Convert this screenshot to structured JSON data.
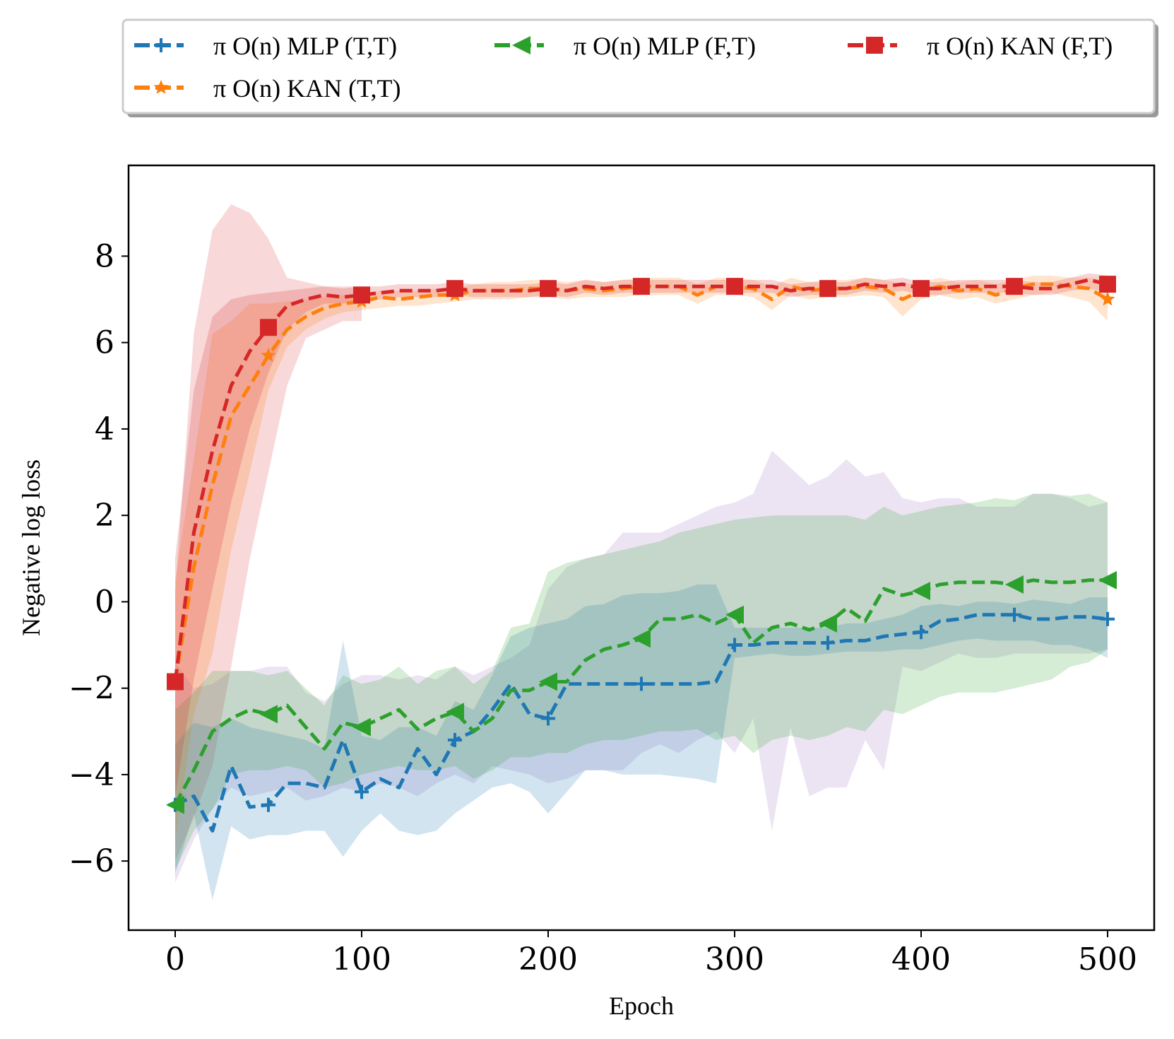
{
  "chart_data": {
    "type": "line",
    "title": "",
    "xlabel": "Epoch",
    "ylabel": "Negative log loss",
    "xlim": [
      -25,
      525
    ],
    "ylim": [
      -7.6,
      10.1
    ],
    "xticks": [
      0,
      100,
      200,
      300,
      400,
      500
    ],
    "yticks": [
      -6,
      -4,
      -2,
      0,
      2,
      4,
      6,
      8
    ],
    "xtick_labels": [
      "0",
      "100",
      "200",
      "300",
      "400",
      "500"
    ],
    "ytick_labels": [
      "−6",
      "−4",
      "−2",
      "0",
      "2",
      "4",
      "6",
      "8"
    ],
    "legend_position": "top, outside plot",
    "series": [
      {
        "name": "π O(n) MLP (T,T)",
        "color": "#1f77b4",
        "marker": "plus",
        "x": [
          0,
          10,
          20,
          30,
          40,
          50,
          60,
          70,
          80,
          90,
          100,
          110,
          120,
          130,
          140,
          150,
          160,
          170,
          180,
          190,
          200,
          210,
          220,
          230,
          240,
          250,
          260,
          270,
          280,
          290,
          300,
          310,
          320,
          330,
          340,
          350,
          360,
          370,
          380,
          390,
          400,
          410,
          420,
          430,
          440,
          450,
          460,
          470,
          480,
          490,
          500
        ],
        "y": [
          -4.7,
          -4.5,
          -5.3,
          -3.8,
          -4.75,
          -4.7,
          -4.2,
          -4.2,
          -4.3,
          -3.2,
          -4.4,
          -4.1,
          -4.3,
          -3.4,
          -4.0,
          -3.2,
          -3.0,
          -2.5,
          -1.9,
          -2.6,
          -2.7,
          -1.9,
          -1.9,
          -1.9,
          -1.9,
          -1.9,
          -1.9,
          -1.9,
          -1.9,
          -1.85,
          -1.0,
          -1.0,
          -0.95,
          -0.95,
          -0.95,
          -0.95,
          -0.9,
          -0.9,
          -0.8,
          -0.75,
          -0.7,
          -0.45,
          -0.4,
          -0.3,
          -0.3,
          -0.3,
          -0.4,
          -0.4,
          -0.35,
          -0.35,
          -0.4
        ],
        "band_lower": [
          -6.3,
          -4.9,
          -6.9,
          -5.2,
          -5.5,
          -5.4,
          -5.4,
          -5.3,
          -5.3,
          -5.9,
          -5.3,
          -4.9,
          -5.3,
          -5.4,
          -5.3,
          -4.9,
          -4.6,
          -4.3,
          -4.2,
          -4.4,
          -4.9,
          -4.4,
          -3.9,
          -3.9,
          -4.0,
          -4.0,
          -4.0,
          -4.05,
          -4.1,
          -4.2,
          -1.3,
          -1.25,
          -1.2,
          -1.25,
          -1.25,
          -1.2,
          -1.15,
          -1.15,
          -1.15,
          -1.1,
          -1.1,
          -1.0,
          -0.9,
          -0.85,
          -0.9,
          -0.9,
          -0.9,
          -1.0,
          -1.0,
          -1.1,
          -1.3
        ],
        "band_upper": [
          -3.3,
          -2.8,
          -2.9,
          -2.7,
          -2.9,
          -3.0,
          -3.1,
          -3.2,
          -3.4,
          -0.9,
          -3.1,
          -3.2,
          -2.9,
          -2.9,
          -3.1,
          -2.3,
          -2.5,
          -1.7,
          -0.8,
          -0.6,
          -0.5,
          -0.4,
          -0.1,
          -0.05,
          0.15,
          0.2,
          0.2,
          0.25,
          0.4,
          0.4,
          -0.6,
          -0.6,
          -0.6,
          -0.6,
          -0.6,
          -0.6,
          -0.5,
          -0.5,
          -0.4,
          -0.3,
          -0.1,
          -0.05,
          -0.1,
          0.0,
          0.0,
          -0.05,
          0.05,
          0.0,
          -0.05,
          0.1,
          0.1
        ]
      },
      {
        "name": "π O(n) KAN (T,T)",
        "color": "#ff7f0e",
        "marker": "star",
        "x": [
          0,
          10,
          20,
          30,
          40,
          50,
          60,
          70,
          80,
          90,
          100,
          110,
          120,
          130,
          140,
          150,
          160,
          170,
          180,
          190,
          200,
          210,
          220,
          230,
          240,
          250,
          260,
          270,
          280,
          290,
          300,
          310,
          320,
          330,
          340,
          350,
          360,
          370,
          380,
          390,
          400,
          410,
          420,
          430,
          440,
          450,
          460,
          470,
          480,
          490,
          500
        ],
        "y": [
          -1.85,
          0.8,
          2.7,
          4.3,
          5.0,
          5.7,
          6.3,
          6.6,
          6.8,
          6.9,
          6.95,
          7.05,
          7.0,
          7.05,
          7.1,
          7.1,
          7.2,
          7.2,
          7.2,
          7.25,
          7.25,
          7.2,
          7.25,
          7.2,
          7.25,
          7.3,
          7.3,
          7.3,
          7.1,
          7.3,
          7.3,
          7.25,
          7.0,
          7.3,
          7.2,
          7.25,
          7.25,
          7.3,
          7.25,
          7.0,
          7.2,
          7.3,
          7.2,
          7.25,
          7.1,
          7.25,
          7.35,
          7.35,
          7.3,
          7.25,
          7.0
        ],
        "band_lower": [
          -5.5,
          -2.6,
          -1.2,
          1.2,
          3.0,
          4.9,
          5.9,
          6.3,
          6.55,
          6.7,
          6.75,
          6.8,
          6.85,
          6.85,
          6.9,
          6.95,
          7.0,
          7.0,
          7.0,
          7.05,
          7.05,
          7.0,
          7.05,
          7.05,
          7.05,
          7.1,
          7.1,
          7.1,
          6.9,
          7.1,
          7.1,
          7.05,
          6.75,
          7.1,
          7.0,
          7.05,
          7.05,
          7.1,
          7.05,
          6.6,
          7.0,
          7.1,
          7.0,
          7.05,
          6.9,
          7.0,
          7.1,
          7.15,
          7.05,
          6.95,
          6.5
        ],
        "band_upper": [
          0.5,
          3.3,
          6.2,
          6.5,
          6.9,
          6.9,
          6.95,
          7.0,
          7.05,
          7.1,
          7.15,
          7.2,
          7.2,
          7.2,
          7.25,
          7.25,
          7.35,
          7.4,
          7.4,
          7.45,
          7.45,
          7.4,
          7.45,
          7.4,
          7.45,
          7.5,
          7.5,
          7.5,
          7.35,
          7.5,
          7.5,
          7.45,
          7.3,
          7.5,
          7.4,
          7.45,
          7.45,
          7.5,
          7.45,
          7.35,
          7.4,
          7.5,
          7.4,
          7.45,
          7.35,
          7.45,
          7.55,
          7.55,
          7.5,
          7.5,
          7.45
        ]
      },
      {
        "name": "π O(n) MLP (F,T)",
        "color": "#2ca02c",
        "marker": "triangle-left",
        "x": [
          0,
          10,
          20,
          30,
          40,
          50,
          60,
          70,
          80,
          90,
          100,
          110,
          120,
          130,
          140,
          150,
          160,
          170,
          180,
          190,
          200,
          210,
          220,
          230,
          240,
          250,
          260,
          270,
          280,
          290,
          300,
          310,
          320,
          330,
          340,
          350,
          360,
          370,
          380,
          390,
          400,
          410,
          420,
          430,
          440,
          450,
          460,
          470,
          480,
          490,
          500
        ],
        "y": [
          -4.7,
          -3.9,
          -3.0,
          -2.7,
          -2.5,
          -2.6,
          -2.4,
          -2.9,
          -3.4,
          -2.8,
          -2.9,
          -2.7,
          -2.5,
          -2.95,
          -2.7,
          -2.55,
          -3.0,
          -2.7,
          -2.05,
          -2.05,
          -1.85,
          -1.85,
          -1.35,
          -1.1,
          -1.0,
          -0.85,
          -0.4,
          -0.4,
          -0.3,
          -0.5,
          -0.3,
          -0.95,
          -0.6,
          -0.5,
          -0.65,
          -0.5,
          -0.15,
          -0.45,
          0.3,
          0.15,
          0.25,
          0.4,
          0.45,
          0.45,
          0.45,
          0.4,
          0.5,
          0.45,
          0.45,
          0.5,
          0.5
        ],
        "band_lower": [
          -6.2,
          -5.3,
          -4.8,
          -4.0,
          -3.9,
          -3.9,
          -3.8,
          -3.9,
          -4.3,
          -4.2,
          -4.0,
          -3.9,
          -3.8,
          -3.9,
          -3.9,
          -3.8,
          -4.1,
          -3.9,
          -3.6,
          -3.6,
          -3.5,
          -3.5,
          -3.3,
          -3.2,
          -3.2,
          -3.1,
          -3.0,
          -3.0,
          -2.95,
          -3.2,
          -3.1,
          -3.5,
          -3.2,
          -3.1,
          -3.2,
          -3.1,
          -2.9,
          -3.0,
          -2.5,
          -2.6,
          -2.4,
          -2.2,
          -2.1,
          -2.1,
          -2.1,
          -2.0,
          -1.9,
          -1.8,
          -1.5,
          -1.4,
          -1.1
        ],
        "band_upper": [
          -2.5,
          -2.1,
          -1.6,
          -1.6,
          -1.6,
          -1.7,
          -1.6,
          -2.0,
          -2.4,
          -1.7,
          -1.9,
          -1.8,
          -1.5,
          -1.9,
          -1.6,
          -1.5,
          -1.9,
          -1.6,
          -0.6,
          -0.5,
          0.7,
          0.9,
          1.0,
          1.1,
          1.2,
          1.3,
          1.4,
          1.6,
          1.7,
          1.8,
          1.9,
          1.95,
          2.0,
          2.0,
          2.0,
          2.0,
          2.0,
          1.9,
          2.2,
          2.0,
          2.1,
          2.2,
          2.25,
          2.3,
          2.4,
          2.35,
          2.5,
          2.5,
          2.45,
          2.5,
          2.3
        ]
      },
      {
        "name": "π O(n) KAN (F,T)",
        "color": "#d62728",
        "marker": "square",
        "x": [
          0,
          10,
          20,
          30,
          40,
          50,
          60,
          70,
          80,
          90,
          100,
          110,
          120,
          130,
          140,
          150,
          160,
          170,
          180,
          190,
          200,
          210,
          220,
          230,
          240,
          250,
          260,
          270,
          280,
          290,
          300,
          310,
          320,
          330,
          340,
          350,
          360,
          370,
          380,
          390,
          400,
          410,
          420,
          430,
          440,
          450,
          460,
          470,
          480,
          490,
          500
        ],
        "y": [
          -1.85,
          1.6,
          3.5,
          5.0,
          5.8,
          6.35,
          6.85,
          7.0,
          7.1,
          7.05,
          7.1,
          7.15,
          7.2,
          7.2,
          7.2,
          7.25,
          7.2,
          7.2,
          7.2,
          7.2,
          7.25,
          7.2,
          7.3,
          7.25,
          7.3,
          7.3,
          7.3,
          7.3,
          7.3,
          7.3,
          7.3,
          7.3,
          7.3,
          7.2,
          7.25,
          7.25,
          7.25,
          7.35,
          7.3,
          7.35,
          7.25,
          7.25,
          7.3,
          7.3,
          7.3,
          7.3,
          7.25,
          7.25,
          7.35,
          7.45,
          7.35
        ],
        "band_lower": [
          -4.5,
          -1.8,
          0.3,
          2.3,
          4.0,
          5.3,
          6.3,
          6.7,
          6.9,
          6.9,
          6.95,
          7.0,
          7.05,
          7.05,
          7.05,
          7.1,
          7.05,
          7.05,
          7.05,
          7.05,
          7.1,
          7.05,
          7.15,
          7.1,
          7.15,
          7.15,
          7.15,
          7.15,
          7.15,
          7.15,
          7.15,
          7.15,
          7.15,
          7.05,
          7.1,
          7.1,
          7.1,
          7.2,
          7.15,
          7.2,
          7.1,
          7.1,
          7.15,
          7.15,
          7.15,
          7.15,
          7.1,
          7.1,
          7.2,
          7.25,
          7.15
        ],
        "band_upper": [
          1.0,
          4.9,
          6.6,
          7.0,
          7.1,
          7.15,
          7.2,
          7.25,
          7.3,
          7.25,
          7.3,
          7.3,
          7.35,
          7.35,
          7.35,
          7.4,
          7.35,
          7.35,
          7.35,
          7.35,
          7.4,
          7.35,
          7.45,
          7.4,
          7.45,
          7.45,
          7.45,
          7.45,
          7.45,
          7.45,
          7.45,
          7.45,
          7.45,
          7.35,
          7.4,
          7.4,
          7.4,
          7.5,
          7.45,
          7.5,
          7.4,
          7.4,
          7.45,
          7.45,
          7.45,
          7.45,
          7.4,
          7.4,
          7.5,
          7.6,
          7.55
        ]
      }
    ],
    "extra_bands": [
      {
        "color": "#d62728",
        "x": [
          0,
          10,
          20,
          30,
          40,
          50,
          60,
          70,
          80,
          90,
          100
        ],
        "lower": [
          -6.0,
          -5.0,
          -3.8,
          -1.5,
          1.0,
          3.0,
          5.0,
          6.1,
          6.3,
          6.5,
          6.5
        ],
        "upper": [
          0.2,
          6.2,
          8.6,
          9.2,
          9.0,
          8.4,
          7.5,
          7.4,
          7.3,
          7.3,
          7.3
        ]
      },
      {
        "color": "#9467bd",
        "x": [
          0,
          10,
          20,
          30,
          40,
          50,
          60,
          70,
          80,
          90,
          100,
          110,
          120,
          130,
          140,
          150,
          160,
          170,
          180,
          190,
          200,
          210,
          220,
          230,
          240,
          250,
          260,
          270,
          280,
          290,
          300,
          310,
          320,
          330,
          340,
          350,
          360,
          370,
          380,
          390,
          400,
          410,
          420,
          430,
          440,
          450,
          460,
          470,
          480,
          490,
          500
        ],
        "lower": [
          -6.5,
          -5.5,
          -4.8,
          -4.3,
          -4.5,
          -4.4,
          -4.3,
          -4.6,
          -4.5,
          -4.3,
          -4.4,
          -4.2,
          -4.3,
          -4.5,
          -4.2,
          -4.0,
          -4.2,
          -3.8,
          -3.9,
          -4.0,
          -4.2,
          -4.1,
          -3.9,
          -3.9,
          -3.9,
          -3.5,
          -3.3,
          -3.5,
          -3.2,
          -3.0,
          -3.5,
          -2.7,
          -5.3,
          -2.9,
          -4.5,
          -4.3,
          -4.3,
          -3.2,
          -3.9,
          -1.5,
          -1.6,
          -1.4,
          -1.2,
          -1.3,
          -1.3,
          -1.2,
          -1.2,
          -1.2,
          -1.2,
          -1.2,
          -1.1
        ],
        "upper": [
          -1.4,
          -2.0,
          -1.9,
          -1.6,
          -1.6,
          -1.5,
          -1.5,
          -2.1,
          -2.3,
          -1.9,
          -1.7,
          -1.7,
          -1.8,
          -1.7,
          -1.8,
          -1.5,
          -1.7,
          -1.5,
          -1.3,
          -1.0,
          0.3,
          0.8,
          1.0,
          1.1,
          1.6,
          1.6,
          1.6,
          1.8,
          2.0,
          2.2,
          2.3,
          2.5,
          3.5,
          3.1,
          2.7,
          2.9,
          3.3,
          2.9,
          3.0,
          2.4,
          2.3,
          2.4,
          2.4,
          2.2,
          2.2,
          2.2,
          2.5,
          2.5,
          2.4,
          2.2,
          2.3
        ]
      }
    ],
    "legend": {
      "entries": [
        {
          "label": "π O(n) MLP (T,T)",
          "series_index": 0
        },
        {
          "label": "π O(n) MLP (F,T)",
          "series_index": 2
        },
        {
          "label": "π O(n) KAN (F,T)",
          "series_index": 3
        },
        {
          "label": "π O(n) KAN (T,T)",
          "series_index": 1
        }
      ]
    }
  }
}
